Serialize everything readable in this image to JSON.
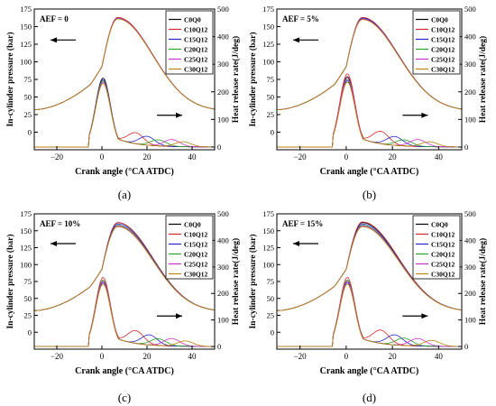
{
  "figure": {
    "panels": [
      {
        "caption": "(a)",
        "annotation": "AEF = 0"
      },
      {
        "caption": "(b)",
        "annotation": "AEF = 5%"
      },
      {
        "caption": "(c)",
        "annotation": "AEF = 10%"
      },
      {
        "caption": "(d)",
        "annotation": "AEF = 15%"
      }
    ]
  },
  "chart_data": [
    {
      "type": "line",
      "panel": "(a)",
      "annotation": "AEF = 0",
      "xlabel": "Crank angle (°CA ATDC)",
      "ylabel_left": "In-cylinder pressure (bar)",
      "ylabel_right": "Heat release rate(J/deg)",
      "xlim": [
        -30,
        50
      ],
      "xticks": [
        -20,
        0,
        20,
        40
      ],
      "ylim_left": [
        -25,
        175
      ],
      "yticks_left": [
        0,
        25,
        50,
        75,
        100,
        125,
        150,
        175
      ],
      "ylim_right": [
        -10,
        500
      ],
      "yticks_right": [
        0,
        100,
        200,
        300,
        400,
        500
      ],
      "legend_position": "top-right",
      "series": [
        {
          "name": "C0Q0",
          "color": "#000000",
          "pressure_peak": 162,
          "pressure_peak_angle": 7,
          "hrr_peak": 250,
          "hrr_peak_angle": 0.5,
          "hrr_bump": 0,
          "hrr_bump_angle": 0
        },
        {
          "name": "C10Q12",
          "color": "#d62728",
          "pressure_peak": 163,
          "pressure_peak_angle": 7,
          "hrr_peak": 240,
          "hrr_peak_angle": 0.5,
          "hrr_bump": 40,
          "hrr_bump_angle": 15
        },
        {
          "name": "C15Q12",
          "color": "#2424c8",
          "pressure_peak": 162,
          "pressure_peak_angle": 7,
          "hrr_peak": 245,
          "hrr_peak_angle": 0.5,
          "hrr_bump": 32,
          "hrr_bump_angle": 20
        },
        {
          "name": "C20Q12",
          "color": "#2ca02c",
          "pressure_peak": 161,
          "pressure_peak_angle": 7,
          "hrr_peak": 240,
          "hrr_peak_angle": 0.5,
          "hrr_bump": 22,
          "hrr_bump_angle": 25
        },
        {
          "name": "C25Q12",
          "color": "#cc33cc",
          "pressure_peak": 162,
          "pressure_peak_angle": 7,
          "hrr_peak": 235,
          "hrr_peak_angle": 0.5,
          "hrr_bump": 25,
          "hrr_bump_angle": 31
        },
        {
          "name": "C30Q12",
          "color": "#b8860b",
          "pressure_peak": 161,
          "pressure_peak_angle": 7,
          "hrr_peak": 230,
          "hrr_peak_angle": 0.5,
          "hrr_bump": 18,
          "hrr_bump_angle": 36
        }
      ]
    },
    {
      "type": "line",
      "panel": "(b)",
      "annotation": "AEF = 5%",
      "xlabel": "Crank angle (°CA ATDC)",
      "ylabel_left": "In-cylinder pressure (bar)",
      "ylabel_right": "Heat release rate(J/deg)",
      "xlim": [
        -30,
        50
      ],
      "xticks": [
        -20,
        0,
        20,
        40
      ],
      "ylim_left": [
        -25,
        175
      ],
      "yticks_left": [
        0,
        25,
        50,
        75,
        100,
        125,
        150,
        175
      ],
      "ylim_right": [
        -10,
        500
      ],
      "yticks_right": [
        0,
        100,
        200,
        300,
        400,
        500
      ],
      "legend_position": "top-right",
      "series": [
        {
          "name": "C0Q0",
          "color": "#000000",
          "pressure_peak": 162,
          "pressure_peak_angle": 7,
          "hrr_peak": 255,
          "hrr_peak_angle": 0.5,
          "hrr_bump": 0,
          "hrr_bump_angle": 0
        },
        {
          "name": "C10Q12",
          "color": "#d62728",
          "pressure_peak": 163,
          "pressure_peak_angle": 7,
          "hrr_peak": 265,
          "hrr_peak_angle": 0.5,
          "hrr_bump": 45,
          "hrr_bump_angle": 15
        },
        {
          "name": "C15Q12",
          "color": "#2424c8",
          "pressure_peak": 162,
          "pressure_peak_angle": 7,
          "hrr_peak": 240,
          "hrr_peak_angle": 0.5,
          "hrr_bump": 32,
          "hrr_bump_angle": 21
        },
        {
          "name": "C20Q12",
          "color": "#2ca02c",
          "pressure_peak": 161,
          "pressure_peak_angle": 7,
          "hrr_peak": 245,
          "hrr_peak_angle": 0.5,
          "hrr_bump": 22,
          "hrr_bump_angle": 25
        },
        {
          "name": "C25Q12",
          "color": "#cc33cc",
          "pressure_peak": 161,
          "pressure_peak_angle": 7,
          "hrr_peak": 250,
          "hrr_peak_angle": 0.5,
          "hrr_bump": 25,
          "hrr_bump_angle": 31
        },
        {
          "name": "C30Q12",
          "color": "#b8860b",
          "pressure_peak": 160,
          "pressure_peak_angle": 7,
          "hrr_peak": 235,
          "hrr_peak_angle": 0.5,
          "hrr_bump": 18,
          "hrr_bump_angle": 36
        }
      ]
    },
    {
      "type": "line",
      "panel": "(c)",
      "annotation": "AEF = 10%",
      "xlabel": "Crank angle (°CA ATDC)",
      "ylabel_left": "In-cylinder pressure (bar)",
      "ylabel_right": "Heat release rate(J/deg)",
      "xlim": [
        -30,
        50
      ],
      "xticks": [
        -20,
        0,
        20,
        40
      ],
      "ylim_left": [
        -25,
        175
      ],
      "yticks_left": [
        0,
        25,
        50,
        75,
        100,
        125,
        150,
        175
      ],
      "ylim_right": [
        -10,
        500
      ],
      "yticks_right": [
        0,
        100,
        200,
        300,
        400,
        500
      ],
      "legend_position": "top-right",
      "series": [
        {
          "name": "C0Q0",
          "color": "#000000",
          "pressure_peak": 162,
          "pressure_peak_angle": 7,
          "hrr_peak": 250,
          "hrr_peak_angle": 0.5,
          "hrr_bump": 0,
          "hrr_bump_angle": 0
        },
        {
          "name": "C10Q12",
          "color": "#d62728",
          "pressure_peak": 162,
          "pressure_peak_angle": 7,
          "hrr_peak": 260,
          "hrr_peak_angle": 0.5,
          "hrr_bump": 48,
          "hrr_bump_angle": 15
        },
        {
          "name": "C15Q12",
          "color": "#2424c8",
          "pressure_peak": 160,
          "pressure_peak_angle": 7,
          "hrr_peak": 240,
          "hrr_peak_angle": 0.5,
          "hrr_bump": 38,
          "hrr_bump_angle": 21
        },
        {
          "name": "C20Q12",
          "color": "#2ca02c",
          "pressure_peak": 158,
          "pressure_peak_angle": 7,
          "hrr_peak": 250,
          "hrr_peak_angle": 0.5,
          "hrr_bump": 25,
          "hrr_bump_angle": 25
        },
        {
          "name": "C25Q12",
          "color": "#cc33cc",
          "pressure_peak": 157,
          "pressure_peak_angle": 7,
          "hrr_peak": 245,
          "hrr_peak_angle": 0.5,
          "hrr_bump": 28,
          "hrr_bump_angle": 31
        },
        {
          "name": "C30Q12",
          "color": "#b8860b",
          "pressure_peak": 156,
          "pressure_peak_angle": 7,
          "hrr_peak": 235,
          "hrr_peak_angle": 0.5,
          "hrr_bump": 20,
          "hrr_bump_angle": 37
        }
      ]
    },
    {
      "type": "line",
      "panel": "(d)",
      "annotation": "AEF = 15%",
      "xlabel": "Crank angle (°CA ATDC)",
      "ylabel_left": "In-cylinder pressure (bar)",
      "ylabel_right": "Heat release rate(J/deg)",
      "xlim": [
        -30,
        50
      ],
      "xticks": [
        -20,
        0,
        20,
        40
      ],
      "ylim_left": [
        -25,
        175
      ],
      "yticks_left": [
        0,
        25,
        50,
        75,
        100,
        125,
        150,
        175
      ],
      "ylim_right": [
        -10,
        500
      ],
      "yticks_right": [
        0,
        100,
        200,
        300,
        400,
        500
      ],
      "legend_position": "top-right",
      "series": [
        {
          "name": "C0Q0",
          "color": "#000000",
          "pressure_peak": 162,
          "pressure_peak_angle": 7,
          "hrr_peak": 250,
          "hrr_peak_angle": 0.5,
          "hrr_bump": 0,
          "hrr_bump_angle": 0
        },
        {
          "name": "C10Q12",
          "color": "#d62728",
          "pressure_peak": 163,
          "pressure_peak_angle": 7,
          "hrr_peak": 260,
          "hrr_peak_angle": 0.5,
          "hrr_bump": 50,
          "hrr_bump_angle": 15
        },
        {
          "name": "C15Q12",
          "color": "#2424c8",
          "pressure_peak": 160,
          "pressure_peak_angle": 7,
          "hrr_peak": 240,
          "hrr_peak_angle": 0.5,
          "hrr_bump": 38,
          "hrr_bump_angle": 21
        },
        {
          "name": "C20Q12",
          "color": "#2ca02c",
          "pressure_peak": 158,
          "pressure_peak_angle": 7,
          "hrr_peak": 250,
          "hrr_peak_angle": 0.5,
          "hrr_bump": 28,
          "hrr_bump_angle": 25
        },
        {
          "name": "C25Q12",
          "color": "#cc33cc",
          "pressure_peak": 157,
          "pressure_peak_angle": 7,
          "hrr_peak": 245,
          "hrr_peak_angle": 0.5,
          "hrr_bump": 28,
          "hrr_bump_angle": 31
        },
        {
          "name": "C30Q12",
          "color": "#b8860b",
          "pressure_peak": 156,
          "pressure_peak_angle": 7,
          "hrr_peak": 235,
          "hrr_peak_angle": 0.5,
          "hrr_bump": 22,
          "hrr_bump_angle": 37
        }
      ]
    }
  ]
}
